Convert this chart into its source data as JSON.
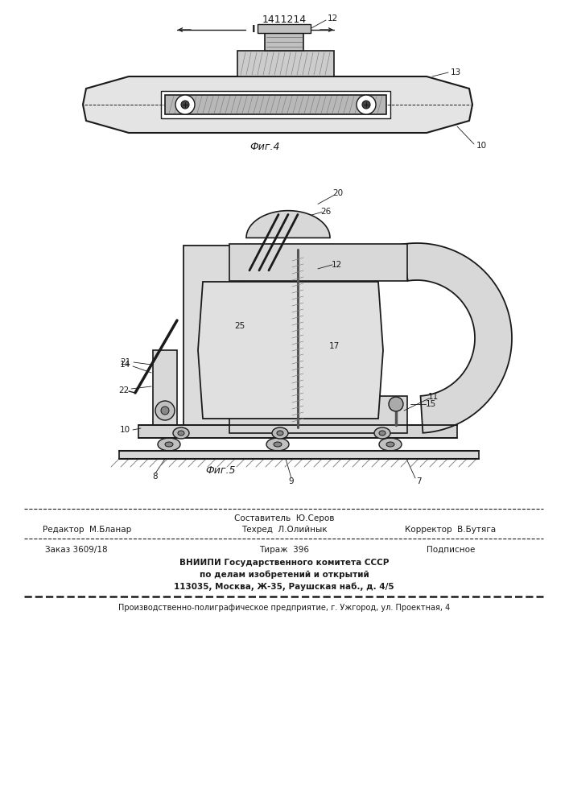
{
  "patent_number": "1411214",
  "bg_color": "#f5f5f0",
  "fig_color": "#ffffff",
  "line_color": "#1a1a1a",
  "header_line1": "Составитель  Ю.Серов",
  "header_line2_left": "Редактор  М.Бланар",
  "header_line2_mid": "Техред  Л.Олийнык",
  "header_line2_right": "Корректор  В.Бутяга",
  "footer_line1_left": "Заказ 3609/18",
  "footer_line1_mid": "Тираж  396",
  "footer_line1_right": "Подписное",
  "footer_line2": "ВНИИПИ Государственного комитета СССР",
  "footer_line3": "по делам изобретений и открытий",
  "footer_line4": "113035, Москва, Ж-35, Раушская наб., д. 4/5",
  "footer_line5": "Производственно-полиграфическое предприятие, г. Ужгород, ул. Проектная, 4",
  "fig4_label": "Фиг.4",
  "fig5_label": "Фиг.5",
  "labels_fig4": [
    "10",
    "12",
    "13"
  ],
  "labels_fig5": [
    "7",
    "8",
    "9",
    "10",
    "11",
    "12",
    "14",
    "15",
    "17",
    "20",
    "21",
    "22",
    "25",
    "26"
  ]
}
